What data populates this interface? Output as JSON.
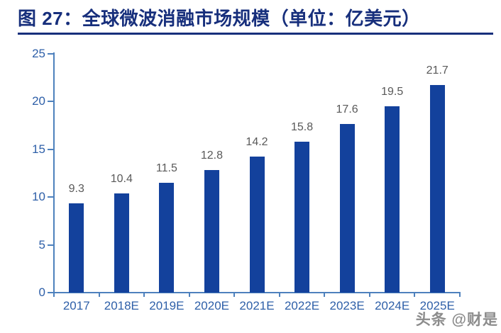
{
  "header": {
    "title": "图 27：全球微波消融市场规模（单位：亿美元）"
  },
  "watermark": {
    "text": "头条 @财是"
  },
  "colors": {
    "title": "#172F7C",
    "bar": "#13419C",
    "axis": "#4E81BD",
    "axis_label": "#2E5FA8",
    "value_label": "#595959",
    "watermark": "#8C8C8C"
  },
  "chart_data": {
    "type": "bar",
    "title": "全球微波消融市场规模",
    "unit": "亿美元",
    "categories": [
      "2017",
      "2018E",
      "2019E",
      "2020E",
      "2021E",
      "2022E",
      "2023E",
      "2024E",
      "2025E"
    ],
    "values": [
      9.3,
      10.4,
      11.5,
      12.8,
      14.2,
      15.8,
      17.6,
      19.5,
      21.7
    ],
    "value_labels": [
      "9.3",
      "10.4",
      "11.5",
      "12.8",
      "14.2",
      "15.8",
      "17.6",
      "19.5",
      "21.7"
    ],
    "ylabel": "",
    "xlabel": "",
    "ylim": [
      0,
      25
    ],
    "ytick_step": 5,
    "yticks": [
      0,
      5,
      10,
      15,
      20,
      25
    ],
    "grid": false,
    "legend": "none",
    "bar_color": "#13419C"
  }
}
